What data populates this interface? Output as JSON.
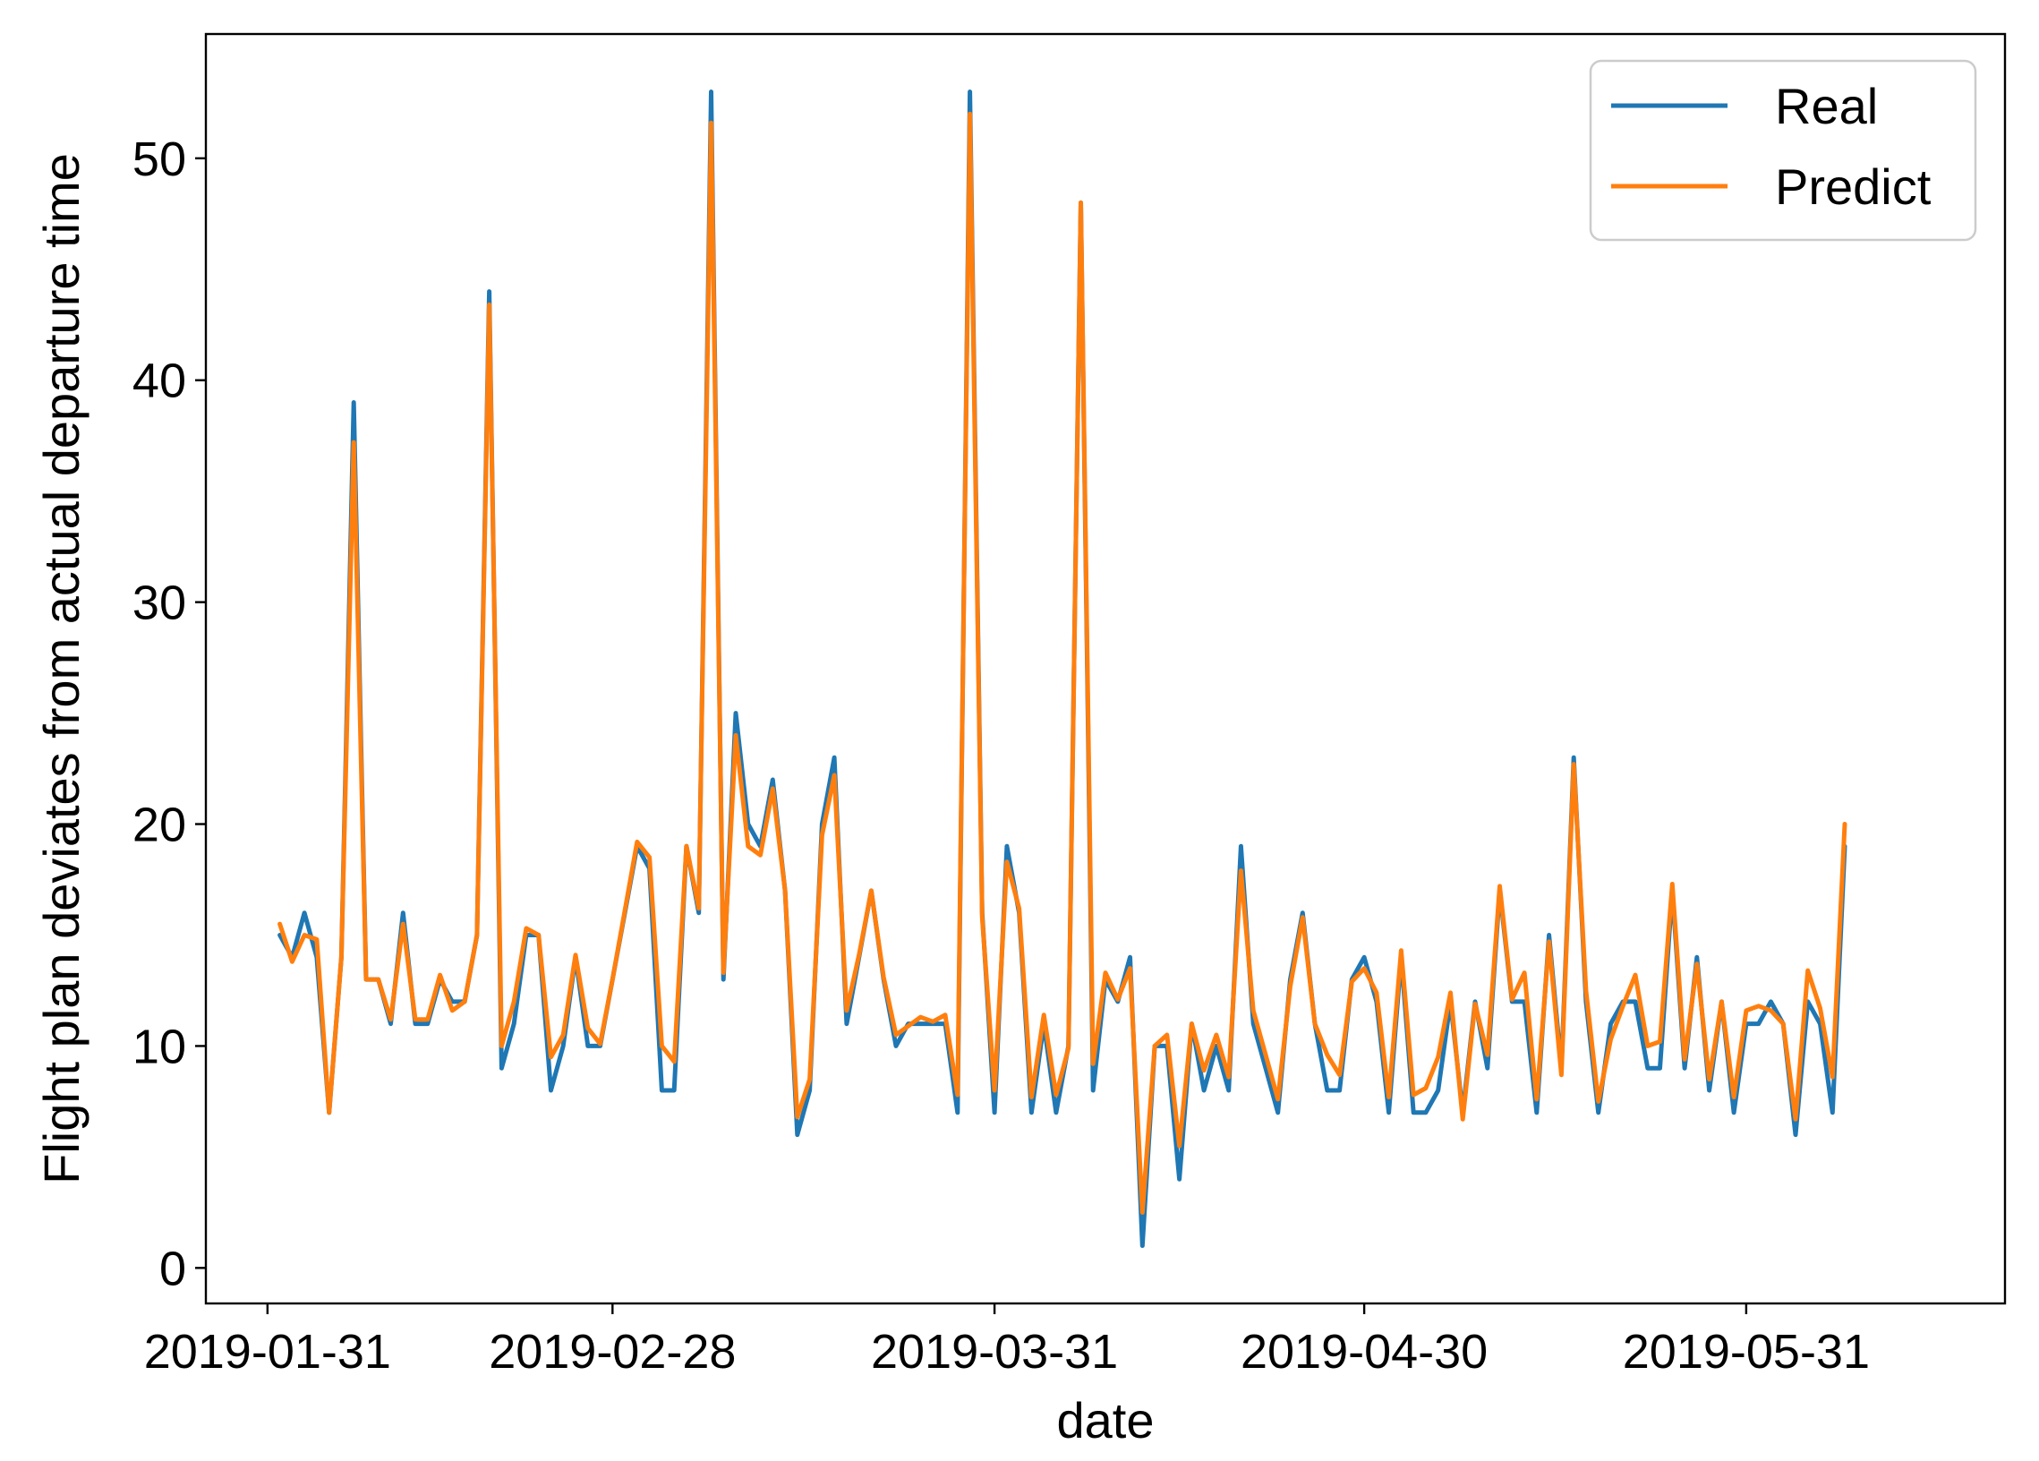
{
  "chart_data": {
    "type": "line",
    "xlabel": "date",
    "ylabel": "Flight plan deviates from actual departure time",
    "xlim": [
      "2019-01-26",
      "2019-06-21"
    ],
    "ylim": [
      -1.6,
      55.6
    ],
    "x_ticks": [
      "2019-01-31",
      "2019-02-28",
      "2019-03-31",
      "2019-04-30",
      "2019-05-31"
    ],
    "y_ticks": [
      0,
      10,
      20,
      30,
      40,
      50
    ],
    "grid": false,
    "legend_position": "top-right",
    "x": [
      "2019-02-01",
      "2019-02-02",
      "2019-02-03",
      "2019-02-04",
      "2019-02-05",
      "2019-02-06",
      "2019-02-07",
      "2019-02-08",
      "2019-02-09",
      "2019-02-10",
      "2019-02-11",
      "2019-02-12",
      "2019-02-13",
      "2019-02-14",
      "2019-02-15",
      "2019-02-16",
      "2019-02-17",
      "2019-02-18",
      "2019-02-19",
      "2019-02-20",
      "2019-02-21",
      "2019-02-22",
      "2019-02-23",
      "2019-02-24",
      "2019-02-25",
      "2019-02-26",
      "2019-02-27",
      "2019-02-28",
      "2019-03-01",
      "2019-03-02",
      "2019-03-03",
      "2019-03-04",
      "2019-03-05",
      "2019-03-06",
      "2019-03-07",
      "2019-03-08",
      "2019-03-09",
      "2019-03-10",
      "2019-03-11",
      "2019-03-12",
      "2019-03-13",
      "2019-03-14",
      "2019-03-15",
      "2019-03-16",
      "2019-03-17",
      "2019-03-18",
      "2019-03-19",
      "2019-03-20",
      "2019-03-21",
      "2019-03-22",
      "2019-03-23",
      "2019-03-24",
      "2019-03-25",
      "2019-03-26",
      "2019-03-27",
      "2019-03-28",
      "2019-03-29",
      "2019-03-30",
      "2019-03-31",
      "2019-04-01",
      "2019-04-02",
      "2019-04-03",
      "2019-04-04",
      "2019-04-05",
      "2019-04-06",
      "2019-04-07",
      "2019-04-08",
      "2019-04-09",
      "2019-04-10",
      "2019-04-11",
      "2019-04-12",
      "2019-04-13",
      "2019-04-14",
      "2019-04-15",
      "2019-04-16",
      "2019-04-17",
      "2019-04-18",
      "2019-04-19",
      "2019-04-20",
      "2019-04-21",
      "2019-04-22",
      "2019-04-23",
      "2019-04-24",
      "2019-04-25",
      "2019-04-26",
      "2019-04-27",
      "2019-04-28",
      "2019-04-29",
      "2019-04-30",
      "2019-05-01",
      "2019-05-02",
      "2019-05-03",
      "2019-05-04",
      "2019-05-05",
      "2019-05-06",
      "2019-05-07",
      "2019-05-08",
      "2019-05-09",
      "2019-05-10",
      "2019-05-11",
      "2019-05-12",
      "2019-05-13",
      "2019-05-14",
      "2019-05-15",
      "2019-05-16",
      "2019-05-17",
      "2019-05-18",
      "2019-05-19",
      "2019-05-20",
      "2019-05-21",
      "2019-05-22",
      "2019-05-23",
      "2019-05-24",
      "2019-05-25",
      "2019-05-26",
      "2019-05-27",
      "2019-05-28",
      "2019-05-29",
      "2019-05-30",
      "2019-05-31",
      "2019-06-01",
      "2019-06-02",
      "2019-06-03",
      "2019-06-04",
      "2019-06-05",
      "2019-06-06",
      "2019-06-07",
      "2019-06-08"
    ],
    "series": [
      {
        "name": "Real",
        "color": "#1f77b4",
        "values": [
          15,
          14,
          16,
          14,
          7,
          14,
          39,
          13,
          13,
          11,
          16,
          11,
          11,
          13,
          12,
          12,
          15,
          44,
          9,
          11,
          15,
          15,
          8,
          10,
          14,
          10,
          10,
          13,
          16,
          19,
          18,
          8,
          8,
          19,
          16,
          53,
          13,
          25,
          20,
          19,
          22,
          17,
          6,
          8,
          20,
          23,
          11,
          14,
          17,
          13,
          10,
          11,
          11,
          11,
          11,
          7,
          53,
          16,
          7,
          19,
          16,
          7,
          11,
          7,
          10,
          48,
          8,
          13,
          12,
          14,
          1,
          10,
          10,
          4,
          11,
          8,
          10,
          8,
          19,
          11,
          9,
          7,
          13,
          16,
          11,
          8,
          8,
          13,
          14,
          12,
          7,
          14,
          7,
          7,
          8,
          12,
          7,
          12,
          9,
          17,
          12,
          12,
          7,
          15,
          9,
          23,
          12,
          7,
          11,
          12,
          12,
          9,
          9,
          17,
          9,
          14,
          8,
          12,
          7,
          11,
          11,
          12,
          11,
          6,
          12,
          11,
          7,
          19
        ]
      },
      {
        "name": "Predict",
        "color": "#ff7f0e",
        "values": [
          15.5,
          13.8,
          15,
          14.8,
          7,
          14,
          37.2,
          13,
          13,
          11.2,
          15.5,
          11.2,
          11.2,
          13.2,
          11.6,
          12,
          15,
          43.4,
          10,
          12,
          15.3,
          15,
          9.5,
          10.5,
          14.1,
          10.8,
          10.1,
          13,
          16.1,
          19.2,
          18.5,
          10,
          9.3,
          19,
          16.2,
          51.6,
          13.3,
          24,
          19,
          18.6,
          21.6,
          17,
          6.8,
          8.5,
          19.5,
          22.2,
          11.6,
          14.1,
          17,
          13.1,
          10.5,
          10.9,
          11.3,
          11.1,
          11.4,
          7.8,
          52,
          15.8,
          8,
          18.3,
          16.2,
          7.7,
          11.4,
          7.8,
          9.9,
          48,
          9.2,
          13.3,
          12.1,
          13.5,
          2.5,
          10,
          10.5,
          5.5,
          11,
          8.9,
          10.5,
          8.6,
          17.9,
          11.6,
          9.6,
          7.6,
          12.7,
          15.8,
          11,
          9.6,
          8.7,
          12.9,
          13.5,
          12.4,
          7.7,
          14.3,
          7.8,
          8.1,
          9.5,
          12.4,
          6.7,
          11.9,
          9.6,
          17.2,
          12.1,
          13.3,
          7.6,
          14.7,
          8.7,
          22.7,
          12.5,
          7.5,
          10.3,
          11.8,
          13.2,
          10,
          10.2,
          17.3,
          9.4,
          13.7,
          8.5,
          12,
          7.7,
          11.6,
          11.8,
          11.6,
          11,
          6.7,
          13.4,
          11.7,
          8.6,
          20
        ]
      }
    ]
  }
}
